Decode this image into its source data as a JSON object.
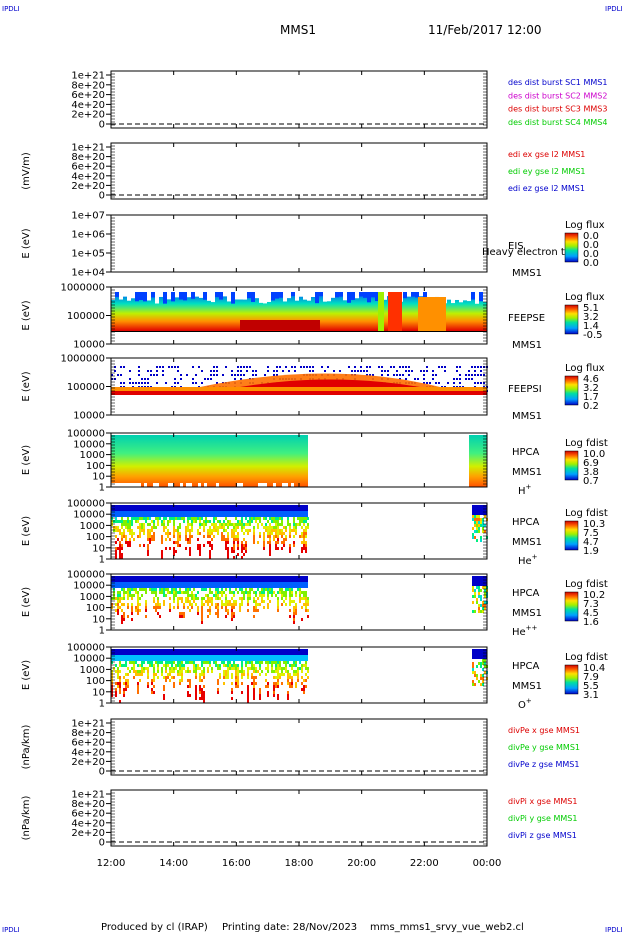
{
  "header": {
    "corner_left_top": "IPDLI",
    "corner_right_top": "IPDLI",
    "corner_left_bottom": "IPDLI",
    "corner_right_bottom": "IPDLI",
    "spacecraft": "MMS1",
    "datetime": "11/Feb/2017 12:00"
  },
  "footer": {
    "produced_by": "Produced by cl (IRAP)",
    "printing_date": "Printing date: 28/Nov/2023",
    "filename": "mms_mms1_srvy_vue_web2.cl"
  },
  "colors": {
    "series_red": "#dd0000",
    "series_green": "#00cc00",
    "series_blue": "#0000cc",
    "series_magenta": "#cc00cc"
  },
  "chart_data": [
    {
      "type": "line",
      "ylabel": "",
      "yticks": [
        "0",
        "2e+20",
        "4e+20",
        "6e+20",
        "8e+20",
        "1e+21"
      ],
      "legend": [
        {
          "label": "des dist burst SC1 MMS1",
          "color": "#0000cc"
        },
        {
          "label": "des dist burst SC2 MMS2",
          "color": "#cc00cc"
        },
        {
          "label": "des dist burst SC3 MMS3",
          "color": "#dd0000"
        },
        {
          "label": "des dist burst SC4 MMS4",
          "color": "#00cc00"
        }
      ]
    },
    {
      "type": "line",
      "ylabel": "(mV/m)",
      "yticks": [
        "0",
        "2e+20",
        "4e+20",
        "6e+20",
        "8e+20",
        "1e+21"
      ],
      "legend": [
        {
          "label": "edi ex gse l2 MMS1",
          "color": "#dd0000"
        },
        {
          "label": "edi ey gse l2 MMS1",
          "color": "#00cc00"
        },
        {
          "label": "edi ez gse l2 MMS1",
          "color": "#0000cc"
        }
      ]
    },
    {
      "type": "heatmap",
      "ylabel": "E (eV)",
      "yticks": [
        "1e+04",
        "1e+05",
        "1e+06",
        "1e+07"
      ],
      "log_scale": true,
      "instrument": "EIS",
      "note": "Heavy electron to",
      "spacecraft": "MMS1",
      "colorbar_title": "Log flux",
      "colorbar_ticks": [
        "0.0",
        "0.0",
        "0.0",
        "0.0"
      ]
    },
    {
      "type": "heatmap",
      "ylabel": "E (eV)",
      "yticks": [
        "10000",
        "100000",
        "1000000"
      ],
      "log_scale": true,
      "instrument": "FEEPSE",
      "spacecraft": "MMS1",
      "colorbar_title": "Log flux",
      "colorbar_ticks": [
        "5.1",
        "3.2",
        "1.4",
        "-0.5"
      ]
    },
    {
      "type": "heatmap",
      "ylabel": "E (eV)",
      "yticks": [
        "10000",
        "100000",
        "1000000"
      ],
      "log_scale": true,
      "instrument": "FEEPSI",
      "spacecraft": "MMS1",
      "colorbar_title": "Log flux",
      "colorbar_ticks": [
        "4.6",
        "3.2",
        "1.7",
        "0.2"
      ]
    },
    {
      "type": "heatmap",
      "ylabel": "E (eV)",
      "yticks": [
        "1",
        "10",
        "100",
        "1000",
        "10000",
        "100000"
      ],
      "log_scale": true,
      "instrument": "HPCA",
      "spacecraft": "MMS1",
      "species_base": "H",
      "species_sup": "+",
      "colorbar_title": "Log fdist",
      "colorbar_ticks": [
        "10.0",
        "6.9",
        "3.8",
        "0.7"
      ]
    },
    {
      "type": "heatmap",
      "ylabel": "E (eV)",
      "yticks": [
        "1",
        "10",
        "100",
        "1000",
        "10000",
        "100000"
      ],
      "log_scale": true,
      "instrument": "HPCA",
      "spacecraft": "MMS1",
      "species_base": "He",
      "species_sup": "+",
      "colorbar_title": "Log fdist",
      "colorbar_ticks": [
        "10.3",
        "7.5",
        "4.7",
        "1.9"
      ]
    },
    {
      "type": "heatmap",
      "ylabel": "E (eV)",
      "yticks": [
        "1",
        "10",
        "100",
        "1000",
        "10000",
        "100000"
      ],
      "log_scale": true,
      "instrument": "HPCA",
      "spacecraft": "MMS1",
      "species_base": "He",
      "species_sup": "++",
      "colorbar_title": "Log fdist",
      "colorbar_ticks": [
        "10.2",
        "7.3",
        "4.5",
        "1.6"
      ]
    },
    {
      "type": "heatmap",
      "ylabel": "E (eV)",
      "yticks": [
        "1",
        "10",
        "100",
        "1000",
        "10000",
        "100000"
      ],
      "log_scale": true,
      "instrument": "HPCA",
      "spacecraft": "MMS1",
      "species_base": "O",
      "species_sup": "+",
      "colorbar_title": "Log fdist",
      "colorbar_ticks": [
        "10.4",
        "7.9",
        "5.5",
        "3.1"
      ]
    },
    {
      "type": "line",
      "ylabel": "(nPa/km)",
      "yticks": [
        "0",
        "2e+20",
        "4e+20",
        "6e+20",
        "8e+20",
        "1e+21"
      ],
      "legend": [
        {
          "label": "divPe x gse MMS1",
          "color": "#dd0000"
        },
        {
          "label": "divPe y gse MMS1",
          "color": "#00cc00"
        },
        {
          "label": "divPe z gse MMS1",
          "color": "#0000cc"
        }
      ]
    },
    {
      "type": "line",
      "ylabel": "(nPa/km)",
      "yticks": [
        "0",
        "2e+20",
        "4e+20",
        "6e+20",
        "8e+20",
        "1e+21"
      ],
      "legend": [
        {
          "label": "divPi x gse MMS1",
          "color": "#dd0000"
        },
        {
          "label": "divPi y gse MMS1",
          "color": "#00cc00"
        },
        {
          "label": "divPi z gse MMS1",
          "color": "#0000cc"
        }
      ]
    }
  ],
  "x_axis": {
    "ticks": [
      "12:00",
      "14:00",
      "16:00",
      "18:00",
      "20:00",
      "22:00",
      "00:00"
    ],
    "range_hours": [
      12,
      24
    ]
  }
}
